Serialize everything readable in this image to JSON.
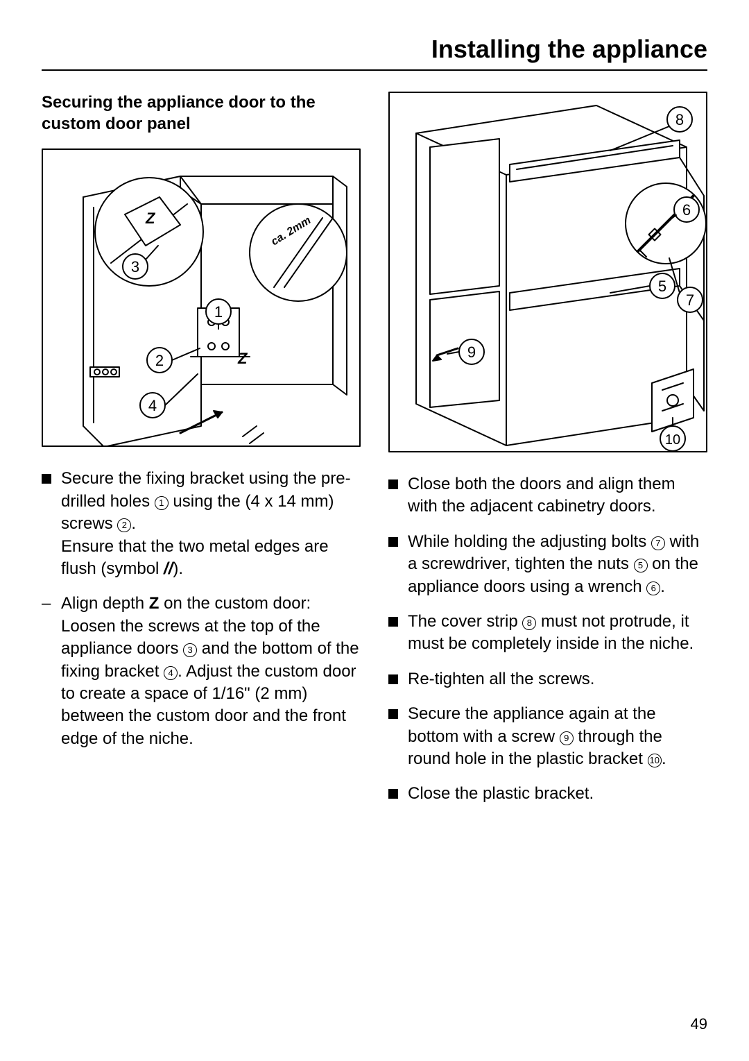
{
  "page": {
    "title": "Installing the appliance",
    "number": "49"
  },
  "left": {
    "subheading": "Securing the appliance door to the custom door panel",
    "figure": {
      "callouts": [
        "1",
        "2",
        "3",
        "4"
      ],
      "z_label": "Z",
      "gap_label": "ca. 2mm",
      "stroke": "#000000",
      "bg": "#ffffff"
    },
    "items": [
      {
        "type": "square",
        "html": "Secure the fixing bracket using the pre-drilled holes <span class='circled'>1</span> using the (4 x 14 mm) screws <span class='circled'>2</span>.<br>Ensure that the two metal edges are flush (symbol <b><i>//</i></b>)."
      },
      {
        "type": "dash",
        "html": "Align depth <b>Z</b> on the custom door: Loosen the screws at the top of the appliance doors <span class='circled'>3</span> and the bottom of the fixing bracket <span class='circled'>4</span>. Adjust the custom door to create a space of 1/16\" (2 mm) between the custom door and the front edge of the niche."
      }
    ]
  },
  "right": {
    "figure": {
      "callouts": [
        "5",
        "6",
        "7",
        "8",
        "9",
        "10"
      ],
      "stroke": "#000000",
      "bg": "#ffffff"
    },
    "items": [
      {
        "type": "square",
        "html": "Close both the doors and align them with the adjacent cabinetry doors."
      },
      {
        "type": "square",
        "html": "While holding the adjusting bolts <span class='circled'>7</span> with a screwdriver, tighten the nuts <span class='circled'>5</span> on the appliance doors using a wrench <span class='circled'>6</span>."
      },
      {
        "type": "square",
        "html": "The cover strip <span class='circled'>8</span> must not protrude, it must be completely inside in the niche."
      },
      {
        "type": "square",
        "html": "Re-tighten all the screws."
      },
      {
        "type": "square",
        "html": "Secure the appliance again at the bottom with a screw <span class='circled'>9</span> through the round hole in the plastic bracket <span class='circled'>10</span>."
      },
      {
        "type": "square",
        "html": "Close the plastic bracket."
      }
    ]
  }
}
